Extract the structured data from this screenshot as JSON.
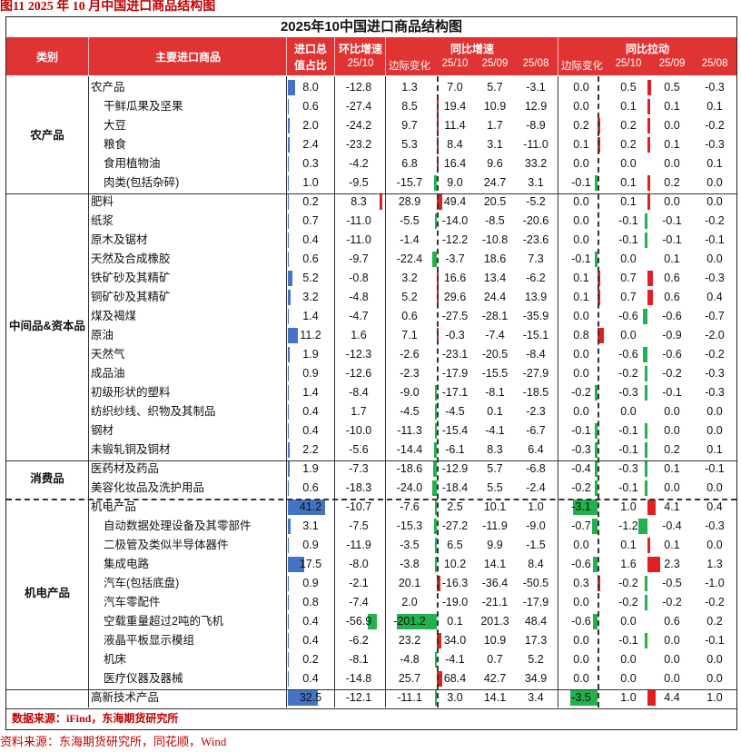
{
  "caption": "图11   2025 年 10 月中国进口商品结构图",
  "table_title": "2025年10中国进口商品结构图",
  "headers": {
    "category": "类别",
    "product": "主要进口商品",
    "share_line1": "进口总",
    "share_line2": "值占比",
    "mom_title": "环比增速",
    "mom_sub": "25/10",
    "yoy_title": "同比增速",
    "yoy_sub": [
      "边际变化",
      "25/10",
      "25/09",
      "25/08"
    ],
    "pull_title": "同比拉动",
    "pull_sub": [
      "边际变化",
      "25/10",
      "25/09",
      "25/08"
    ]
  },
  "groups": [
    {
      "name": "农产品",
      "rows": [
        {
          "name": "农产品",
          "indent": false,
          "share": "8.0",
          "mom": "-12.8",
          "yoy_chg": "1.3",
          "yoy10": "7.0",
          "yoy09": "5.7",
          "yoy08": "-3.1",
          "pull_chg": "0.0",
          "pull10": "0.5",
          "pull09": "0.5",
          "pull08": "-0.3"
        },
        {
          "name": "干鲜瓜果及坚果",
          "indent": true,
          "share": "0.6",
          "mom": "-27.4",
          "yoy_chg": "8.5",
          "yoy10": "19.4",
          "yoy09": "10.9",
          "yoy08": "12.9",
          "pull_chg": "0.0",
          "pull10": "0.1",
          "pull09": "0.1",
          "pull08": "0.1"
        },
        {
          "name": "大豆",
          "indent": true,
          "share": "2.0",
          "mom": "-24.2",
          "yoy_chg": "9.7",
          "yoy10": "11.4",
          "yoy09": "1.7",
          "yoy08": "-8.9",
          "pull_chg": "0.2",
          "pull10": "0.2",
          "pull09": "0.0",
          "pull08": "-0.2"
        },
        {
          "name": "粮食",
          "indent": true,
          "share": "2.4",
          "mom": "-23.2",
          "yoy_chg": "5.3",
          "yoy10": "8.4",
          "yoy09": "3.1",
          "yoy08": "-11.0",
          "pull_chg": "0.1",
          "pull10": "0.2",
          "pull09": "0.1",
          "pull08": "-0.3"
        },
        {
          "name": "食用植物油",
          "indent": true,
          "share": "0.3",
          "mom": "-4.2",
          "yoy_chg": "6.8",
          "yoy10": "16.4",
          "yoy09": "9.6",
          "yoy08": "33.2",
          "pull_chg": "0.0",
          "pull10": "0.0",
          "pull09": "0.0",
          "pull08": "0.1"
        },
        {
          "name": "肉类(包括杂碎)",
          "indent": true,
          "share": "1.0",
          "mom": "-9.5",
          "yoy_chg": "-15.7",
          "yoy10": "9.0",
          "yoy09": "24.7",
          "yoy08": "3.1",
          "pull_chg": "-0.1",
          "pull10": "0.1",
          "pull09": "0.2",
          "pull08": "0.0"
        }
      ]
    },
    {
      "name": "中间品&资本品",
      "rows": [
        {
          "name": "肥料",
          "indent": false,
          "share": "0.2",
          "mom": "8.3",
          "yoy_chg": "28.9",
          "yoy10": "49.4",
          "yoy09": "20.5",
          "yoy08": "-5.2",
          "pull_chg": "0.0",
          "pull10": "0.1",
          "pull09": "0.0",
          "pull08": "0.0"
        },
        {
          "name": "纸浆",
          "indent": false,
          "share": "0.7",
          "mom": "-11.0",
          "yoy_chg": "-5.5",
          "yoy10": "-14.0",
          "yoy09": "-8.5",
          "yoy08": "-20.6",
          "pull_chg": "0.0",
          "pull10": "-0.1",
          "pull09": "-0.1",
          "pull08": "-0.2"
        },
        {
          "name": "原木及锯材",
          "indent": false,
          "share": "0.4",
          "mom": "-11.0",
          "yoy_chg": "-1.4",
          "yoy10": "-12.2",
          "yoy09": "-10.8",
          "yoy08": "-23.6",
          "pull_chg": "0.0",
          "pull10": "-0.1",
          "pull09": "-0.1",
          "pull08": "-0.1"
        },
        {
          "name": "天然及合成橡胶",
          "indent": false,
          "share": "0.6",
          "mom": "-9.7",
          "yoy_chg": "-22.4",
          "yoy10": "-3.7",
          "yoy09": "18.6",
          "yoy08": "7.3",
          "pull_chg": "-0.1",
          "pull10": "0.0",
          "pull09": "0.1",
          "pull08": "0.0"
        },
        {
          "name": "铁矿砂及其精矿",
          "indent": false,
          "share": "5.2",
          "mom": "-0.8",
          "yoy_chg": "3.2",
          "yoy10": "16.6",
          "yoy09": "13.4",
          "yoy08": "-6.2",
          "pull_chg": "0.1",
          "pull10": "0.7",
          "pull09": "0.6",
          "pull08": "-0.3"
        },
        {
          "name": "铜矿砂及其精矿",
          "indent": false,
          "share": "3.2",
          "mom": "-4.8",
          "yoy_chg": "5.2",
          "yoy10": "29.6",
          "yoy09": "24.4",
          "yoy08": "13.9",
          "pull_chg": "0.1",
          "pull10": "0.7",
          "pull09": "0.6",
          "pull08": "0.4"
        },
        {
          "name": "煤及褐煤",
          "indent": false,
          "share": "1.4",
          "mom": "-4.7",
          "yoy_chg": "0.6",
          "yoy10": "-27.5",
          "yoy09": "-28.1",
          "yoy08": "-35.9",
          "pull_chg": "0.0",
          "pull10": "-0.6",
          "pull09": "-0.6",
          "pull08": "-0.7"
        },
        {
          "name": "原油",
          "indent": false,
          "share": "11.2",
          "mom": "1.6",
          "yoy_chg": "7.1",
          "yoy10": "-0.3",
          "yoy09": "-7.4",
          "yoy08": "-15.1",
          "pull_chg": "0.8",
          "pull10": "0.0",
          "pull09": "-0.9",
          "pull08": "-2.0"
        },
        {
          "name": "天然气",
          "indent": false,
          "share": "1.9",
          "mom": "-12.3",
          "yoy_chg": "-2.6",
          "yoy10": "-23.1",
          "yoy09": "-20.5",
          "yoy08": "-8.4",
          "pull_chg": "0.0",
          "pull10": "-0.6",
          "pull09": "-0.6",
          "pull08": "-0.2"
        },
        {
          "name": "成品油",
          "indent": false,
          "share": "0.9",
          "mom": "-12.6",
          "yoy_chg": "-2.3",
          "yoy10": "-17.9",
          "yoy09": "-15.5",
          "yoy08": "-27.9",
          "pull_chg": "0.0",
          "pull10": "-0.2",
          "pull09": "-0.2",
          "pull08": "-0.3"
        },
        {
          "name": "初级形状的塑料",
          "indent": false,
          "share": "1.4",
          "mom": "-8.4",
          "yoy_chg": "-9.0",
          "yoy10": "-17.1",
          "yoy09": "-8.1",
          "yoy08": "-18.5",
          "pull_chg": "-0.2",
          "pull10": "-0.3",
          "pull09": "-0.1",
          "pull08": "-0.3"
        },
        {
          "name": "纺织纱线、织物及其制品",
          "indent": false,
          "share": "0.4",
          "mom": "1.7",
          "yoy_chg": "-4.5",
          "yoy10": "-4.5",
          "yoy09": "0.1",
          "yoy08": "-2.3",
          "pull_chg": "0.0",
          "pull10": "0.0",
          "pull09": "0.0",
          "pull08": "0.0"
        },
        {
          "name": "钢材",
          "indent": false,
          "share": "0.4",
          "mom": "-10.0",
          "yoy_chg": "-11.3",
          "yoy10": "-15.4",
          "yoy09": "-4.1",
          "yoy08": "-6.7",
          "pull_chg": "-0.1",
          "pull10": "-0.1",
          "pull09": "0.0",
          "pull08": "0.0"
        },
        {
          "name": "未锻轧铜及铜材",
          "indent": false,
          "share": "2.2",
          "mom": "-5.6",
          "yoy_chg": "-14.4",
          "yoy10": "-6.1",
          "yoy09": "8.3",
          "yoy08": "6.4",
          "pull_chg": "-0.3",
          "pull10": "-0.1",
          "pull09": "0.2",
          "pull08": "0.1"
        }
      ]
    },
    {
      "name": "消费品",
      "rows": [
        {
          "name": "医药材及药品",
          "indent": false,
          "share": "1.9",
          "mom": "-7.3",
          "yoy_chg": "-18.6",
          "yoy10": "-12.9",
          "yoy09": "5.7",
          "yoy08": "-6.8",
          "pull_chg": "-0.4",
          "pull10": "-0.3",
          "pull09": "0.1",
          "pull08": "-0.1"
        },
        {
          "name": "美容化妆品及洗护用品",
          "indent": false,
          "share": "0.6",
          "mom": "-18.3",
          "yoy_chg": "-24.0",
          "yoy10": "-18.4",
          "yoy09": "5.5",
          "yoy08": "-2.4",
          "pull_chg": "-0.2",
          "pull10": "-0.1",
          "pull09": "0.0",
          "pull08": "0.0"
        }
      ]
    },
    {
      "name": "机电产品",
      "rows": [
        {
          "name": "机电产品",
          "indent": false,
          "share": "41.2",
          "mom": "-10.7",
          "yoy_chg": "-7.6",
          "yoy10": "2.5",
          "yoy09": "10.1",
          "yoy08": "1.0",
          "pull_chg": "-3.1",
          "pull10": "1.0",
          "pull09": "4.1",
          "pull08": "0.4"
        },
        {
          "name": "自动数据处理设备及其零部件",
          "indent": true,
          "share": "3.1",
          "mom": "-7.5",
          "yoy_chg": "-15.3",
          "yoy10": "-27.2",
          "yoy09": "-11.9",
          "yoy08": "-9.0",
          "pull_chg": "-0.7",
          "pull10": "-1.2",
          "pull09": "-0.4",
          "pull08": "-0.3"
        },
        {
          "name": "二极管及类似半导体器件",
          "indent": true,
          "share": "0.9",
          "mom": "-11.9",
          "yoy_chg": "-3.5",
          "yoy10": "6.5",
          "yoy09": "9.9",
          "yoy08": "-1.5",
          "pull_chg": "0.0",
          "pull10": "0.1",
          "pull09": "0.1",
          "pull08": "0.0"
        },
        {
          "name": "集成电路",
          "indent": true,
          "share": "17.5",
          "mom": "-8.0",
          "yoy_chg": "-3.8",
          "yoy10": "10.2",
          "yoy09": "14.1",
          "yoy08": "8.4",
          "pull_chg": "-0.6",
          "pull10": "1.6",
          "pull09": "2.3",
          "pull08": "1.3"
        },
        {
          "name": "汽车(包括底盘)",
          "indent": true,
          "share": "0.9",
          "mom": "-2.1",
          "yoy_chg": "20.1",
          "yoy10": "-16.3",
          "yoy09": "-36.4",
          "yoy08": "-50.5",
          "pull_chg": "0.3",
          "pull10": "-0.2",
          "pull09": "-0.5",
          "pull08": "-1.0"
        },
        {
          "name": "汽车零配件",
          "indent": true,
          "share": "0.8",
          "mom": "-7.4",
          "yoy_chg": "2.0",
          "yoy10": "-19.0",
          "yoy09": "-21.1",
          "yoy08": "-17.9",
          "pull_chg": "0.0",
          "pull10": "-0.2",
          "pull09": "-0.2",
          "pull08": "-0.2"
        },
        {
          "name": "空载重量超过2吨的飞机",
          "indent": true,
          "share": "0.4",
          "mom": "-56.9",
          "yoy_chg": "-201.2",
          "yoy10": "0.1",
          "yoy09": "201.3",
          "yoy08": "48.4",
          "pull_chg": "-0.6",
          "pull10": "0.0",
          "pull09": "0.6",
          "pull08": "0.2"
        },
        {
          "name": "液晶平板显示模组",
          "indent": true,
          "share": "0.4",
          "mom": "-6.2",
          "yoy_chg": "23.2",
          "yoy10": "34.0",
          "yoy09": "10.9",
          "yoy08": "17.3",
          "pull_chg": "0.0",
          "pull10": "-0.1",
          "pull09": "0.0",
          "pull08": "-0.1"
        },
        {
          "name": "机床",
          "indent": true,
          "share": "0.2",
          "mom": "-8.1",
          "yoy_chg": "-4.8",
          "yoy10": "-4.1",
          "yoy09": "0.7",
          "yoy08": "5.2",
          "pull_chg": "0.0",
          "pull10": "0.0",
          "pull09": "0.0",
          "pull08": "0.0"
        },
        {
          "name": "医疗仪器及器械",
          "indent": true,
          "share": "0.4",
          "mom": "-14.8",
          "yoy_chg": "25.7",
          "yoy10": "68.4",
          "yoy09": "42.7",
          "yoy08": "34.9",
          "pull_chg": "0.0",
          "pull10": "0.0",
          "pull09": "0.0",
          "pull08": "0.0"
        }
      ]
    },
    {
      "name": "",
      "rows": [
        {
          "name": "高新技术产品",
          "indent": false,
          "share": "32.5",
          "mom": "-12.1",
          "yoy_chg": "-11.1",
          "yoy10": "3.0",
          "yoy09": "14.1",
          "yoy08": "3.4",
          "pull_chg": "-3.5",
          "pull10": "1.0",
          "pull09": "4.4",
          "pull08": "1.0"
        }
      ]
    }
  ],
  "footer_source_in_table": "数据来源：iFind，东海期货研究所",
  "footer_source": "资料来源：东海期货研究所，同花顺，Wind",
  "colors": {
    "header_bg": "#e03434",
    "bar_blue": "#4472c4",
    "bar_red": "#e02020",
    "bar_green": "#22b14c"
  }
}
